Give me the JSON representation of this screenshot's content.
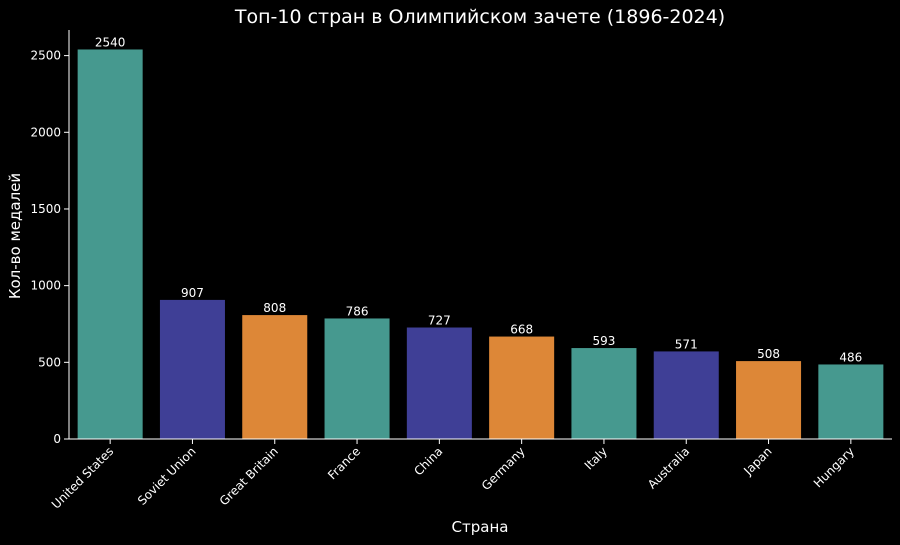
{
  "chart_data": {
    "type": "bar",
    "title": "Топ-10 стран в Олимпийском зачете (1896-2024)",
    "xlabel": "Страна",
    "ylabel": "Кол-во медалей",
    "categories": [
      "United States",
      "Soviet Union",
      "Great Britain",
      "France",
      "China",
      "Germany",
      "Italy",
      "Australia",
      "Japan",
      "Hungary"
    ],
    "values": [
      2540,
      907,
      808,
      786,
      727,
      668,
      593,
      571,
      508,
      486
    ],
    "value_labels": [
      "2540",
      "907",
      "808",
      "786",
      "727",
      "668",
      "593",
      "571",
      "508",
      "486"
    ],
    "colors": [
      "#46998f",
      "#3f3f96",
      "#dd8737",
      "#46998f",
      "#3f3f96",
      "#dd8737",
      "#46998f",
      "#3f3f96",
      "#dd8737",
      "#46998f"
    ],
    "ylim": [
      0,
      2667
    ],
    "yticks": [
      0,
      500,
      1000,
      1500,
      2000,
      2500
    ],
    "ytick_labels": [
      "0",
      "500",
      "1000",
      "1500",
      "2000",
      "2500"
    ],
    "grid": false,
    "legend": "none"
  }
}
